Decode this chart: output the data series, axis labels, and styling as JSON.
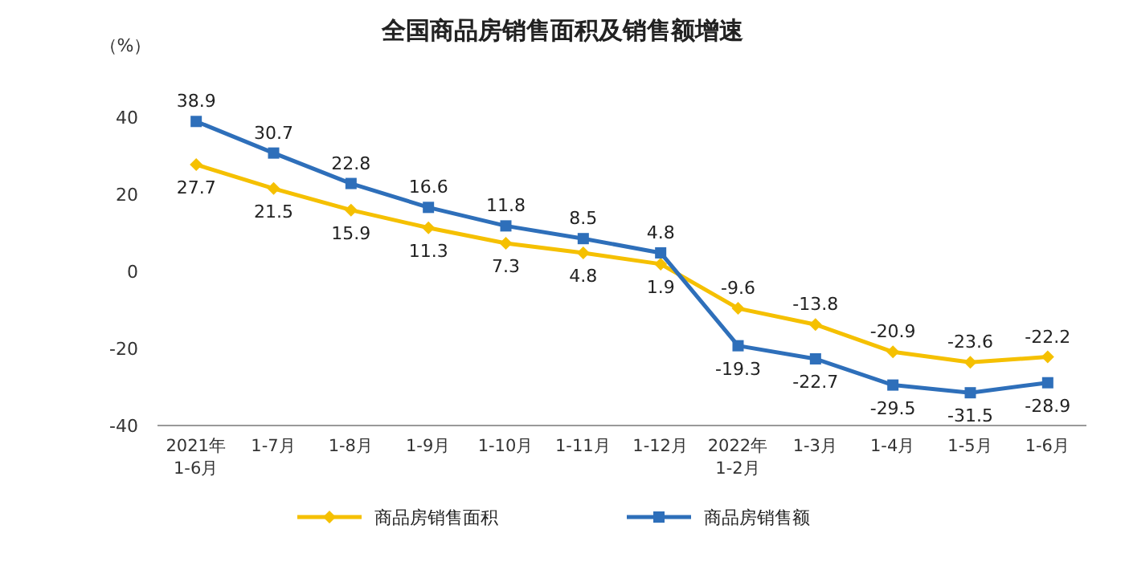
{
  "chart_data": {
    "type": "line",
    "title": "全国商品房销售面积及销售额增速",
    "ylabel": "（%）",
    "categories": [
      "2021年\n1-6月",
      "1-7月",
      "1-8月",
      "1-9月",
      "1-10月",
      "1-11月",
      "1-12月",
      "2022年\n1-2月",
      "1-3月",
      "1-4月",
      "1-5月",
      "1-6月"
    ],
    "series": [
      {
        "name": "商品房销售面积",
        "color": "#f5c000",
        "marker": "diamond",
        "values": [
          27.7,
          21.5,
          15.9,
          11.3,
          7.3,
          4.8,
          1.9,
          -9.6,
          -13.8,
          -20.9,
          -23.6,
          -22.2
        ]
      },
      {
        "name": "商品房销售额",
        "color": "#2e6fba",
        "marker": "square",
        "values": [
          38.9,
          30.7,
          22.8,
          16.6,
          11.8,
          8.5,
          4.8,
          -19.3,
          -22.7,
          -29.5,
          -31.5,
          -28.9
        ]
      }
    ],
    "ylim": [
      -40,
      40
    ],
    "yticks": [
      -40,
      -20,
      0,
      20,
      40
    ],
    "data_labels": true,
    "legend": "bottom"
  }
}
